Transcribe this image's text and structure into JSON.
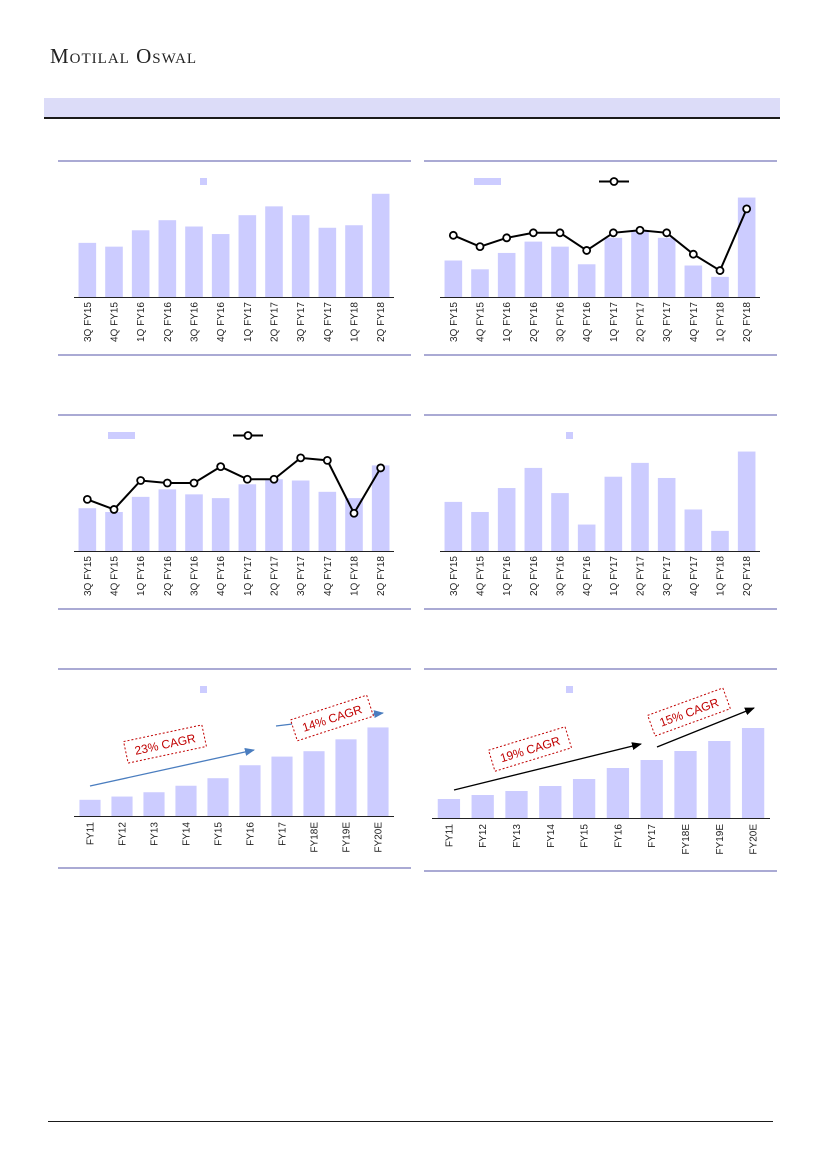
{
  "header": {
    "brand": "Motilal Oswal"
  },
  "colors": {
    "bar": "#ccccff",
    "rule": "#5555aa",
    "line": "#000000",
    "arrow_blue": "#4a7dbf",
    "arrow_black": "#000000",
    "cagr": "#c00000"
  },
  "chart_data": [
    {
      "type": "bar",
      "categories": [
        "3Q FY15",
        "4Q FY15",
        "1Q FY16",
        "2Q FY16",
        "3Q FY16",
        "4Q FY16",
        "1Q FY17",
        "2Q FY17",
        "3Q FY17",
        "4Q FY17",
        "1Q FY18",
        "2Q FY18"
      ],
      "values": [
        43,
        40,
        53,
        61,
        56,
        50,
        65,
        72,
        65,
        55,
        57,
        82
      ],
      "ylim": [
        0,
        85
      ],
      "legend": "top-center",
      "grid": false
    },
    {
      "type": "bar+line",
      "categories": [
        "3Q FY15",
        "4Q FY15",
        "1Q FY16",
        "2Q FY16",
        "3Q FY16",
        "4Q FY16",
        "1Q FY17",
        "2Q FY17",
        "3Q FY17",
        "4Q FY17",
        "1Q FY18",
        "2Q FY18"
      ],
      "values": [
        29,
        22,
        35,
        44,
        40,
        26,
        47,
        53,
        47,
        25,
        16,
        79
      ],
      "line_values": [
        49,
        40,
        47,
        51,
        51,
        37,
        51,
        53,
        51,
        34,
        21,
        70
      ],
      "ylim": [
        0,
        85
      ],
      "legend": "top-left",
      "grid": false
    },
    {
      "type": "bar+line",
      "categories": [
        "3Q FY15",
        "4Q FY15",
        "1Q FY16",
        "2Q FY16",
        "3Q FY16",
        "4Q FY16",
        "1Q FY17",
        "2Q FY17",
        "3Q FY17",
        "4Q FY17",
        "1Q FY18",
        "2Q FY18"
      ],
      "values": [
        34,
        31,
        43,
        49,
        45,
        42,
        53,
        57,
        56,
        47,
        42,
        68
      ],
      "line_values": [
        41,
        33,
        56,
        54,
        54,
        67,
        57,
        57,
        74,
        72,
        30,
        66
      ],
      "ylim": [
        0,
        85
      ],
      "legend": "top-left",
      "grid": false
    },
    {
      "type": "bar",
      "categories": [
        "3Q FY15",
        "4Q FY15",
        "1Q FY16",
        "2Q FY16",
        "3Q FY16",
        "4Q FY16",
        "1Q FY17",
        "2Q FY17",
        "3Q FY17",
        "4Q FY17",
        "1Q FY18",
        "2Q FY18"
      ],
      "values": [
        39,
        31,
        50,
        66,
        46,
        21,
        59,
        70,
        58,
        33,
        16,
        79
      ],
      "ylim": [
        0,
        85
      ],
      "legend": "top-center",
      "grid": false
    },
    {
      "type": "bar",
      "categories": [
        "FY11",
        "FY12",
        "FY13",
        "FY14",
        "FY15",
        "FY16",
        "FY17",
        "FY18E",
        "FY19E",
        "FY20E"
      ],
      "values": [
        15,
        18,
        22,
        28,
        35,
        47,
        55,
        60,
        71,
        82
      ],
      "ylim": [
        0,
        100
      ],
      "legend": "top-center",
      "grid": false,
      "annotations": [
        "23% CAGR",
        "14% CAGR"
      ]
    },
    {
      "type": "bar",
      "categories": [
        "FY11",
        "FY12",
        "FY13",
        "FY14",
        "FY15",
        "FY16",
        "FY17",
        "FY18E",
        "FY19E",
        "FY20E"
      ],
      "values": [
        19,
        23,
        27,
        32,
        39,
        50,
        58,
        67,
        77,
        90
      ],
      "ylim": [
        0,
        110
      ],
      "legend": "top-center",
      "grid": false,
      "annotations": [
        "19% CAGR",
        "15% CAGR"
      ]
    }
  ]
}
